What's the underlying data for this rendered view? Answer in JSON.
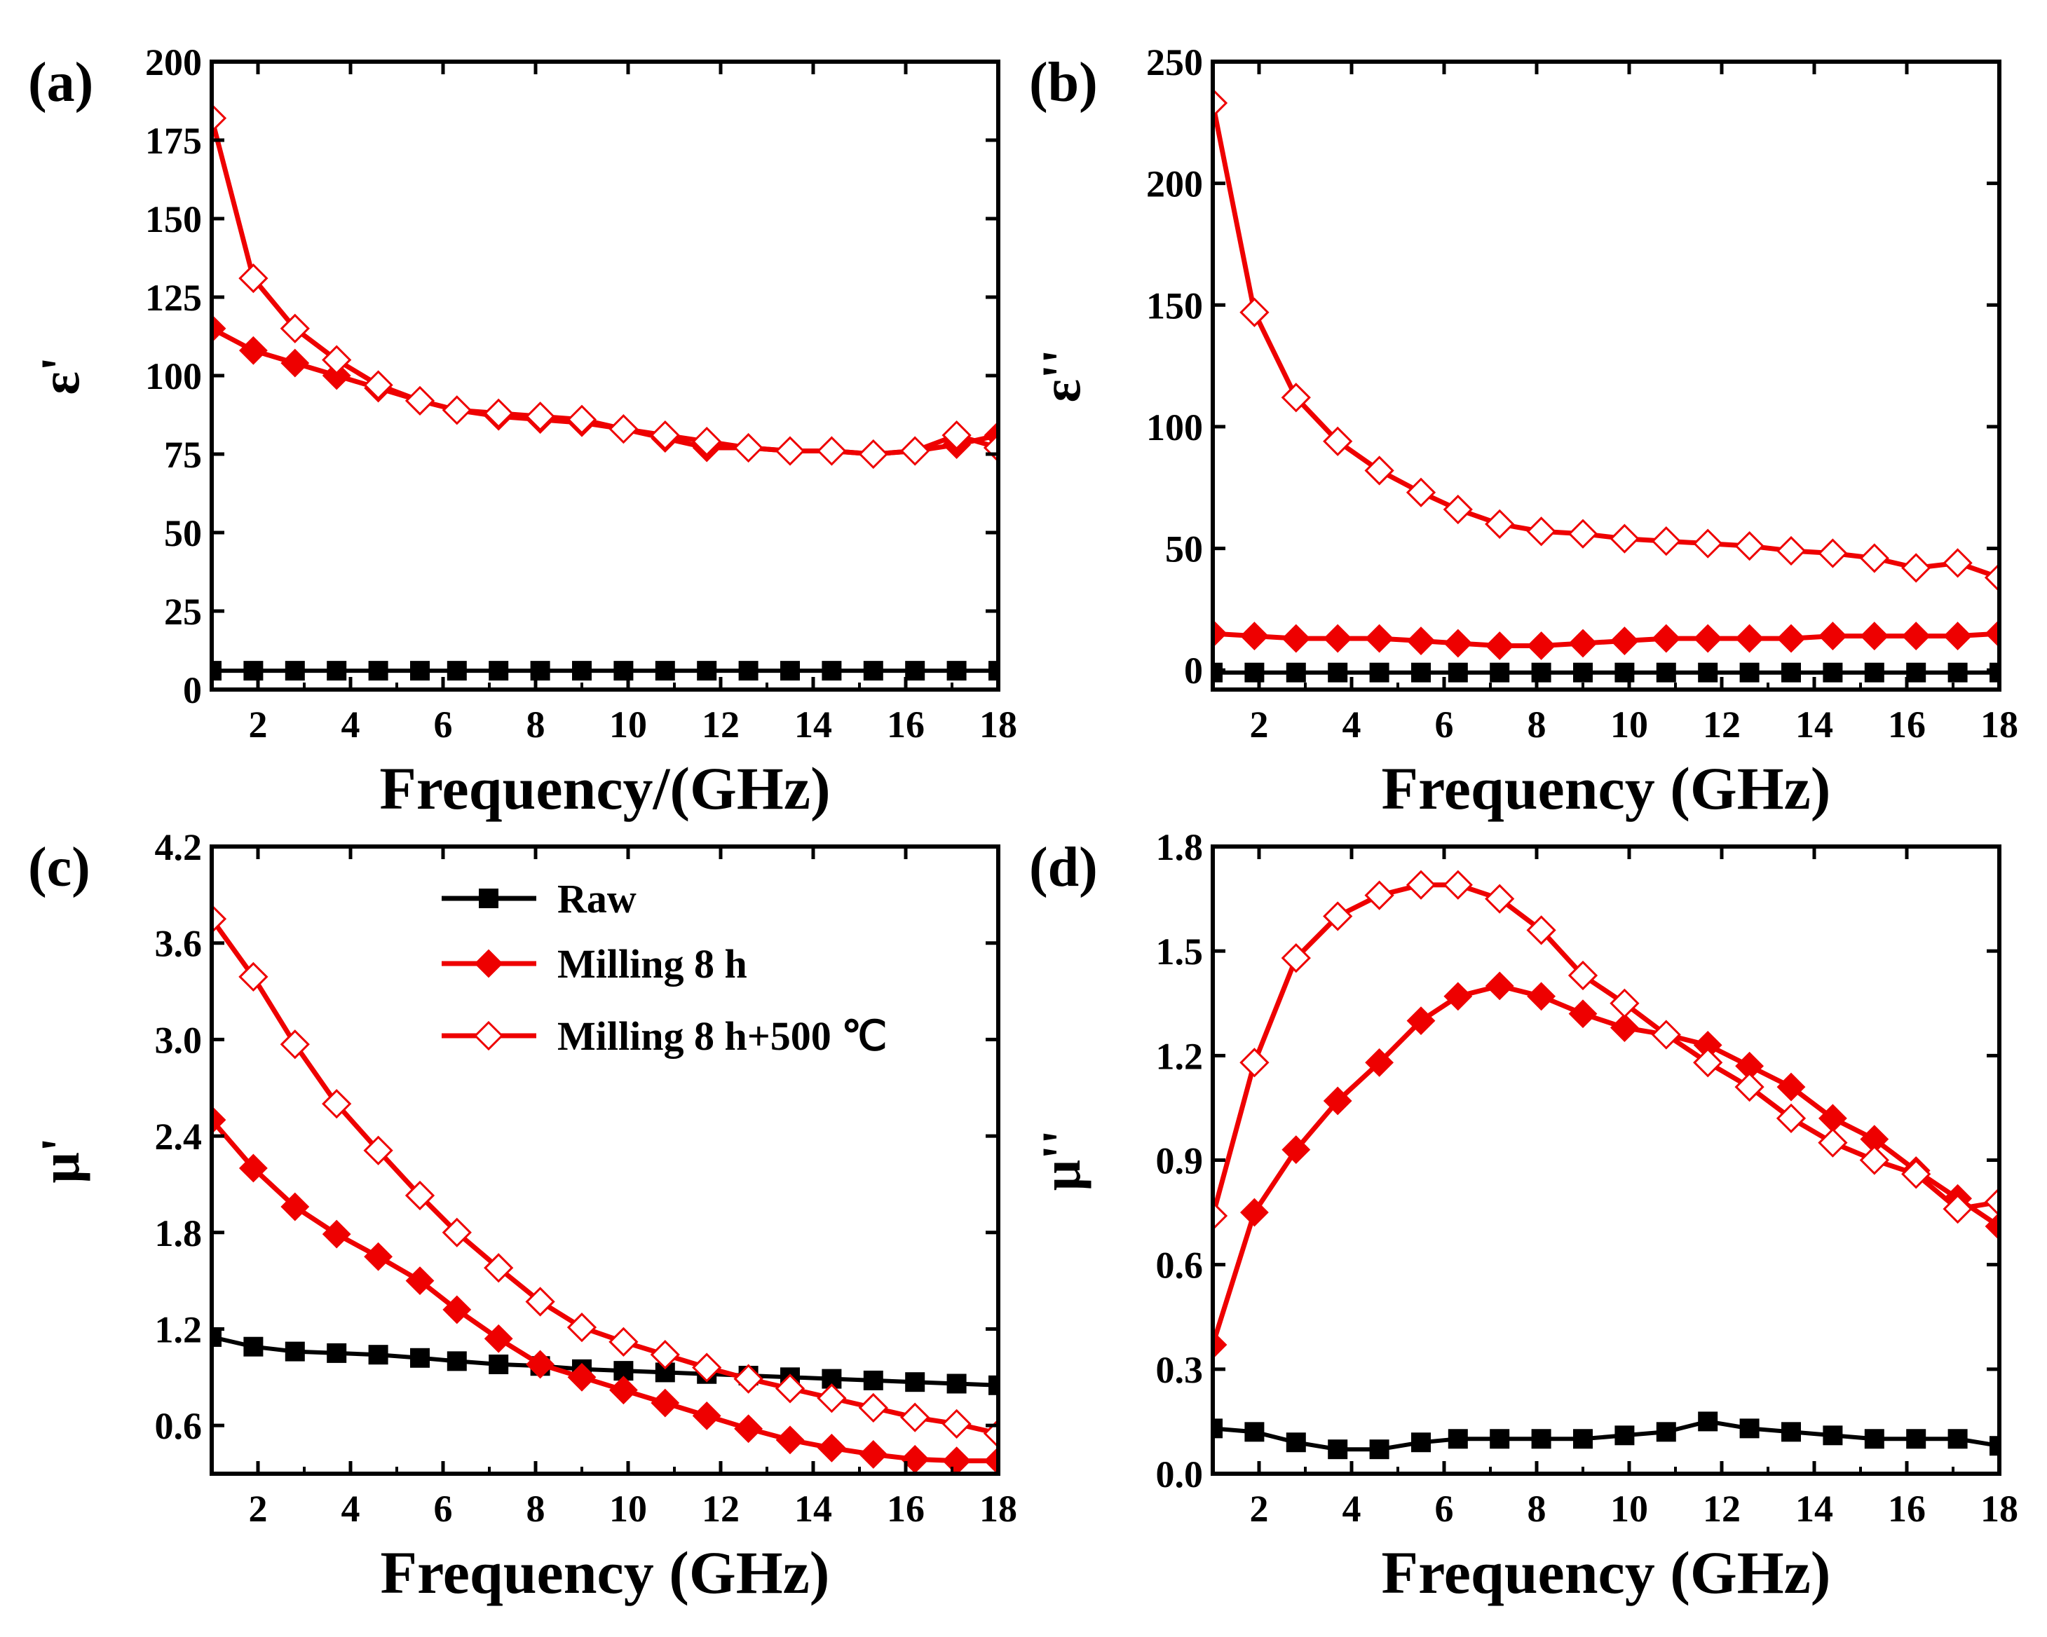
{
  "colors": {
    "raw": "#000000",
    "milled": "#ee0000",
    "annealed": "#ee0000"
  },
  "legend": [
    {
      "name": "Raw",
      "marker": "square",
      "color": "#000000"
    },
    {
      "name": "Milling 8 h",
      "marker": "diamond-filled",
      "color": "#ee0000"
    },
    {
      "name": "Milling 8 h+500 ℃",
      "marker": "diamond-open",
      "color": "#ee0000"
    }
  ],
  "chart_data": [
    {
      "panel": "(a)",
      "type": "line",
      "xlabel": "Frequency/(GHz)",
      "ylabel": "ε'",
      "xlim": [
        1,
        18
      ],
      "ylim": [
        0,
        200
      ],
      "xticks": [
        2,
        4,
        6,
        8,
        10,
        12,
        14,
        16,
        18
      ],
      "yticks": [
        0,
        25,
        50,
        75,
        100,
        125,
        150,
        175,
        200
      ],
      "x": [
        1,
        1.9,
        2.8,
        3.7,
        4.6,
        5.5,
        6.3,
        7.2,
        8.1,
        9.0,
        9.9,
        10.8,
        11.7,
        12.6,
        13.5,
        14.4,
        15.3,
        16.2,
        17.1,
        18
      ],
      "series": [
        {
          "name": "Raw",
          "marker": "square",
          "values": [
            6,
            6,
            6,
            6,
            6,
            6,
            6,
            6,
            6,
            6,
            6,
            6,
            6,
            6,
            6,
            6,
            6,
            6,
            6,
            6
          ]
        },
        {
          "name": "Milling 8 h",
          "marker": "diamond-filled",
          "values": [
            115,
            108,
            104,
            100,
            96,
            92,
            89,
            87,
            86,
            85,
            83,
            80,
            77,
            77,
            76,
            76,
            75,
            76,
            78,
            81
          ]
        },
        {
          "name": "Milling 8 h+500 ℃",
          "marker": "diamond-open",
          "values": [
            182,
            131,
            115,
            105,
            97,
            92,
            89,
            88,
            87,
            86,
            83,
            81,
            79,
            77,
            76,
            76,
            75,
            76,
            81,
            77
          ]
        }
      ]
    },
    {
      "panel": "(b)",
      "type": "line",
      "xlabel": "Frequency (GHz)",
      "ylabel": "ε''",
      "xlim": [
        1,
        18
      ],
      "ylim": [
        -8,
        250
      ],
      "xticks": [
        2,
        4,
        6,
        8,
        10,
        12,
        14,
        16,
        18
      ],
      "yticks": [
        0,
        50,
        100,
        150,
        200,
        250
      ],
      "x": [
        1,
        1.9,
        2.8,
        3.7,
        4.6,
        5.5,
        6.3,
        7.2,
        8.1,
        9.0,
        9.9,
        10.8,
        11.7,
        12.6,
        13.5,
        14.4,
        15.3,
        16.2,
        17.1,
        18
      ],
      "series": [
        {
          "name": "Raw",
          "marker": "square",
          "values": [
            -1,
            -1,
            -1,
            -1,
            -1,
            -1,
            -1,
            -1,
            -1,
            -1,
            -1,
            -1,
            -1,
            -1,
            -1,
            -1,
            -1,
            -1,
            -1,
            -1
          ]
        },
        {
          "name": "Milling 8 h",
          "marker": "diamond-filled",
          "values": [
            15,
            14,
            13,
            13,
            13,
            12,
            11,
            10,
            10,
            11,
            12,
            13,
            13,
            13,
            13,
            14,
            14,
            14,
            14,
            15
          ]
        },
        {
          "name": "Milling 8 h+500 ℃",
          "marker": "diamond-open",
          "values": [
            233,
            147,
            112,
            94,
            82,
            73,
            66,
            60,
            57,
            56,
            54,
            53,
            52,
            51,
            49,
            48,
            46,
            42,
            44,
            38
          ]
        }
      ]
    },
    {
      "panel": "(c)",
      "type": "line",
      "xlabel": "Frequency (GHz)",
      "ylabel": "μ'",
      "xlim": [
        1,
        18
      ],
      "ylim": [
        0.3,
        4.2
      ],
      "xticks": [
        2,
        4,
        6,
        8,
        10,
        12,
        14,
        16,
        18
      ],
      "yticks": [
        0.6,
        1.2,
        1.8,
        2.4,
        3.0,
        3.6,
        4.2
      ],
      "x": [
        1,
        1.9,
        2.8,
        3.7,
        4.6,
        5.5,
        6.3,
        7.2,
        8.1,
        9.0,
        9.9,
        10.8,
        11.7,
        12.6,
        13.5,
        14.4,
        15.3,
        16.2,
        17.1,
        18
      ],
      "series": [
        {
          "name": "Raw",
          "marker": "square",
          "values": [
            1.15,
            1.09,
            1.06,
            1.05,
            1.04,
            1.02,
            1.0,
            0.98,
            0.97,
            0.95,
            0.94,
            0.93,
            0.92,
            0.91,
            0.9,
            0.89,
            0.88,
            0.87,
            0.86,
            0.85
          ]
        },
        {
          "name": "Milling 8 h",
          "marker": "diamond-filled",
          "values": [
            2.5,
            2.2,
            1.96,
            1.79,
            1.65,
            1.5,
            1.32,
            1.14,
            0.98,
            0.9,
            0.82,
            0.74,
            0.66,
            0.58,
            0.51,
            0.46,
            0.42,
            0.39,
            0.38,
            0.38
          ]
        },
        {
          "name": "Milling 8 h+500 ℃",
          "marker": "diamond-open",
          "values": [
            3.75,
            3.39,
            2.97,
            2.6,
            2.31,
            2.03,
            1.8,
            1.58,
            1.37,
            1.21,
            1.12,
            1.04,
            0.96,
            0.89,
            0.83,
            0.77,
            0.71,
            0.65,
            0.61,
            0.55
          ]
        }
      ]
    },
    {
      "panel": "(d)",
      "type": "line",
      "xlabel": "Frequency (GHz)",
      "ylabel": "μ''",
      "xlim": [
        1,
        18
      ],
      "ylim": [
        0.0,
        1.8
      ],
      "xticks": [
        2,
        4,
        6,
        8,
        10,
        12,
        14,
        16,
        18
      ],
      "yticks": [
        0.0,
        0.3,
        0.6,
        0.9,
        1.2,
        1.5,
        1.8
      ],
      "x": [
        1,
        1.9,
        2.8,
        3.7,
        4.6,
        5.5,
        6.3,
        7.2,
        8.1,
        9.0,
        9.9,
        10.8,
        11.7,
        12.6,
        13.5,
        14.4,
        15.3,
        16.2,
        17.1,
        18
      ],
      "series": [
        {
          "name": "Raw",
          "marker": "square",
          "values": [
            0.13,
            0.12,
            0.09,
            0.07,
            0.07,
            0.09,
            0.1,
            0.1,
            0.1,
            0.1,
            0.11,
            0.12,
            0.15,
            0.13,
            0.12,
            0.11,
            0.1,
            0.1,
            0.1,
            0.08
          ]
        },
        {
          "name": "Milling 8 h",
          "marker": "diamond-filled",
          "values": [
            0.37,
            0.75,
            0.93,
            1.07,
            1.18,
            1.3,
            1.37,
            1.4,
            1.37,
            1.32,
            1.28,
            1.26,
            1.23,
            1.17,
            1.11,
            1.02,
            0.96,
            0.87,
            0.79,
            0.71
          ]
        },
        {
          "name": "Milling 8 h+500 ℃",
          "marker": "diamond-open",
          "values": [
            0.74,
            1.18,
            1.48,
            1.6,
            1.66,
            1.69,
            1.69,
            1.65,
            1.56,
            1.43,
            1.35,
            1.26,
            1.18,
            1.11,
            1.02,
            0.95,
            0.9,
            0.86,
            0.76,
            0.78
          ]
        }
      ]
    }
  ]
}
